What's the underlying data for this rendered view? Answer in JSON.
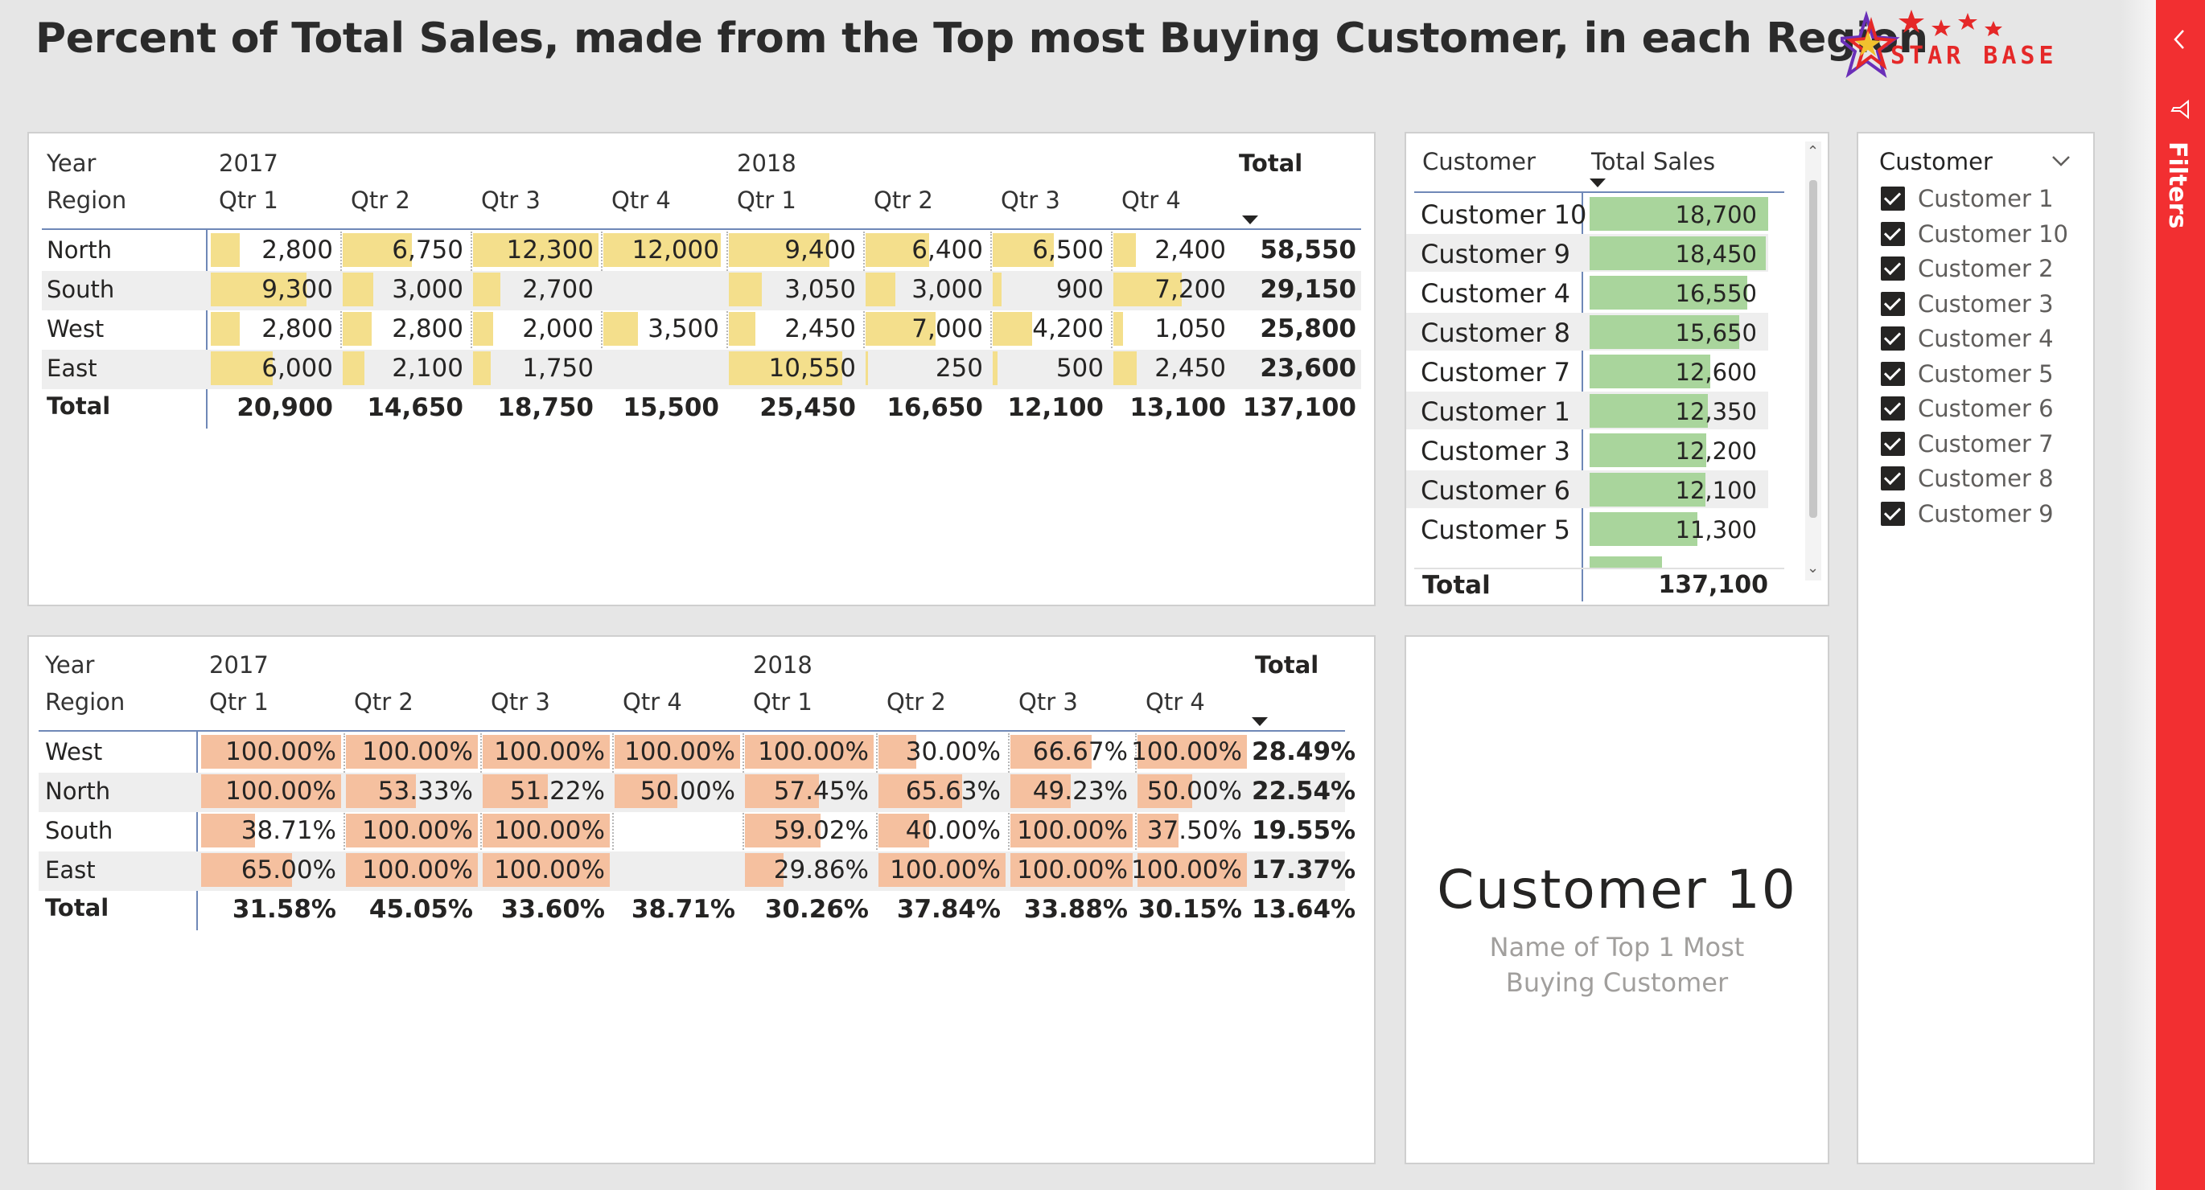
{
  "title": "Percent of Total Sales, made from the Top most Buying Customer, in each Region",
  "logo": {
    "text": "STAR BASE",
    "color": "#e52828"
  },
  "colors": {
    "sales_bar": "#f4df8c",
    "pct_bar": "#f5c09f",
    "customer_bar": "#a9d59c",
    "filters_pane": "#f22f31",
    "header_line": "#6f88b7"
  },
  "sales_matrix": {
    "year_label": "Year",
    "region_label": "Region",
    "years": [
      "2017",
      "2018"
    ],
    "total_label": "Total",
    "quarters": [
      "Qtr 1",
      "Qtr 2",
      "Qtr 3",
      "Qtr 4",
      "Qtr 1",
      "Qtr 2",
      "Qtr 3",
      "Qtr 4"
    ],
    "rows": [
      {
        "region": "North",
        "values": [
          "2,800",
          "6,750",
          "12,300",
          "12,000",
          "9,400",
          "6,400",
          "6,500",
          "2,400"
        ],
        "bars": [
          2800,
          6750,
          12300,
          12000,
          9400,
          6400,
          6500,
          2400
        ],
        "total": "58,550"
      },
      {
        "region": "South",
        "values": [
          "9,300",
          "3,000",
          "2,700",
          "",
          "3,050",
          "3,000",
          "900",
          "7,200"
        ],
        "bars": [
          9300,
          3000,
          2700,
          0,
          3050,
          3000,
          900,
          7200
        ],
        "total": "29,150"
      },
      {
        "region": "West",
        "values": [
          "2,800",
          "2,800",
          "2,000",
          "3,500",
          "2,450",
          "7,000",
          "4,200",
          "1,050"
        ],
        "bars": [
          2800,
          2800,
          2000,
          3500,
          2450,
          7000,
          4200,
          1050
        ],
        "total": "25,800"
      },
      {
        "region": "East",
        "values": [
          "6,000",
          "2,100",
          "1,750",
          "",
          "10,550",
          "250",
          "500",
          "2,450"
        ],
        "bars": [
          6000,
          2100,
          1750,
          0,
          10550,
          250,
          500,
          2450
        ],
        "total": "23,600"
      }
    ],
    "totals": {
      "label": "Total",
      "values": [
        "20,900",
        "14,650",
        "18,750",
        "15,500",
        "25,450",
        "16,650",
        "12,100",
        "13,100"
      ],
      "grand": "137,100"
    }
  },
  "pct_matrix": {
    "year_label": "Year",
    "region_label": "Region",
    "years": [
      "2017",
      "2018"
    ],
    "total_label": "Total",
    "quarters": [
      "Qtr 1",
      "Qtr 2",
      "Qtr 3",
      "Qtr 4",
      "Qtr 1",
      "Qtr 2",
      "Qtr 3",
      "Qtr 4"
    ],
    "rows": [
      {
        "region": "West",
        "values": [
          "100.00%",
          "100.00%",
          "100.00%",
          "100.00%",
          "100.00%",
          "30.00%",
          "66.67%",
          "100.00%"
        ],
        "bars": [
          100,
          100,
          100,
          100,
          100,
          30,
          66.67,
          100
        ],
        "total": "28.49%"
      },
      {
        "region": "North",
        "values": [
          "100.00%",
          "53.33%",
          "51.22%",
          "50.00%",
          "57.45%",
          "65.63%",
          "49.23%",
          "50.00%"
        ],
        "bars": [
          100,
          53.33,
          51.22,
          50,
          57.45,
          65.63,
          49.23,
          50
        ],
        "total": "22.54%"
      },
      {
        "region": "South",
        "values": [
          "38.71%",
          "100.00%",
          "100.00%",
          "",
          "59.02%",
          "40.00%",
          "100.00%",
          "37.50%"
        ],
        "bars": [
          38.71,
          100,
          100,
          0,
          59.02,
          40,
          100,
          37.5
        ],
        "total": "19.55%"
      },
      {
        "region": "East",
        "values": [
          "65.00%",
          "100.00%",
          "100.00%",
          "",
          "29.86%",
          "100.00%",
          "100.00%",
          "100.00%"
        ],
        "bars": [
          65,
          100,
          100,
          0,
          29.86,
          100,
          100,
          100
        ],
        "total": "17.37%"
      }
    ],
    "totals": {
      "label": "Total",
      "values": [
        "31.58%",
        "45.05%",
        "33.60%",
        "38.71%",
        "30.26%",
        "37.84%",
        "33.88%",
        "30.15%"
      ],
      "grand": "13.64%"
    }
  },
  "customer_table": {
    "col_customer": "Customer",
    "col_sales": "Total Sales",
    "rows": [
      {
        "name": "Customer 10",
        "value": "18,700",
        "bar": 18700
      },
      {
        "name": "Customer 9",
        "value": "18,450",
        "bar": 18450
      },
      {
        "name": "Customer 4",
        "value": "16,550",
        "bar": 16550
      },
      {
        "name": "Customer 8",
        "value": "15,650",
        "bar": 15650
      },
      {
        "name": "Customer 7",
        "value": "12,600",
        "bar": 12600
      },
      {
        "name": "Customer 1",
        "value": "12,350",
        "bar": 12350
      },
      {
        "name": "Customer 3",
        "value": "12,200",
        "bar": 12200
      },
      {
        "name": "Customer 6",
        "value": "12,100",
        "bar": 12100
      },
      {
        "name": "Customer 5",
        "value": "11,300",
        "bar": 11300
      }
    ],
    "total_label": "Total",
    "total_value": "137,100"
  },
  "slicer": {
    "title": "Customer",
    "items": [
      "Customer 1",
      "Customer 10",
      "Customer 2",
      "Customer 3",
      "Customer 4",
      "Customer 5",
      "Customer 6",
      "Customer 7",
      "Customer 8",
      "Customer 9"
    ]
  },
  "card": {
    "value": "Customer 10",
    "label": "Name of Top 1 Most Buying Customer"
  },
  "filters_pane": {
    "label": "Filters"
  }
}
